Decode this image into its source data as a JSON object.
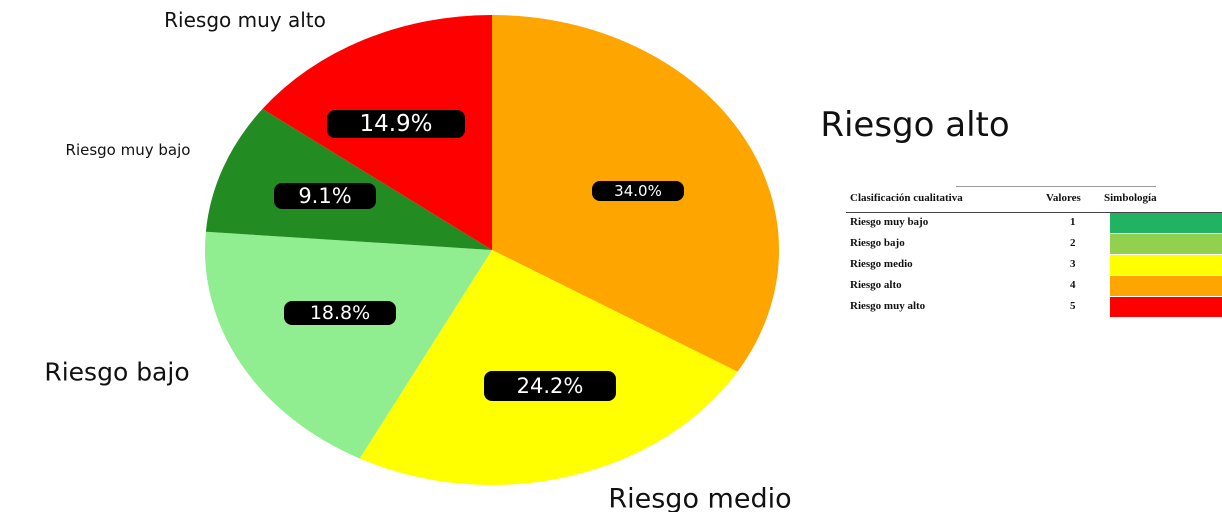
{
  "chart_data": {
    "type": "pie",
    "slices": [
      {
        "label": "Riesgo alto",
        "value": 34.0,
        "display": "34.0%",
        "color": "#FFA500"
      },
      {
        "label": "Riesgo medio",
        "value": 24.2,
        "display": "24.2%",
        "color": "#FFFF00"
      },
      {
        "label": "Riesgo bajo",
        "value": 18.8,
        "display": "18.8%",
        "color": "#90EE90"
      },
      {
        "label": "Riesgo muy bajo",
        "value": 9.1,
        "display": "9.1%",
        "color": "#228B22"
      },
      {
        "label": "Riesgo muy alto",
        "value": 14.9,
        "display": "14.9%",
        "color": "#FF0000"
      }
    ]
  },
  "legend": {
    "headers": {
      "classification": "Clasificación cualitativa",
      "values": "Valores",
      "symbol": "Simbología"
    },
    "rows": [
      {
        "label": "Riesgo muy bajo",
        "value": "1",
        "color": "#22B362"
      },
      {
        "label": "Riesgo bajo",
        "value": "2",
        "color": "#92D050"
      },
      {
        "label": "Riesgo medio",
        "value": "3",
        "color": "#FFFF00"
      },
      {
        "label": "Riesgo alto",
        "value": "4",
        "color": "#FFA500"
      },
      {
        "label": "Riesgo muy alto",
        "value": "5",
        "color": "#FF0000"
      }
    ]
  }
}
